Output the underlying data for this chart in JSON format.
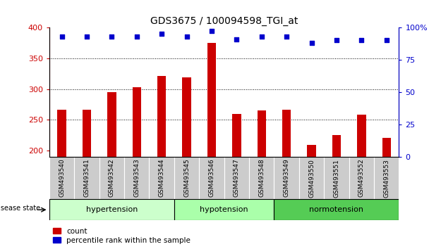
{
  "title": "GDS3675 / 100094598_TGI_at",
  "samples": [
    "GSM493540",
    "GSM493541",
    "GSM493542",
    "GSM493543",
    "GSM493544",
    "GSM493545",
    "GSM493546",
    "GSM493547",
    "GSM493548",
    "GSM493549",
    "GSM493550",
    "GSM493551",
    "GSM493552",
    "GSM493553"
  ],
  "counts": [
    267,
    267,
    295,
    303,
    321,
    319,
    375,
    260,
    265,
    267,
    209,
    225,
    258,
    221
  ],
  "percentiles": [
    93,
    93,
    93,
    93,
    95,
    93,
    97,
    91,
    93,
    93,
    88,
    90,
    90,
    90
  ],
  "ylim_left": [
    190,
    400
  ],
  "ylim_right": [
    0,
    100
  ],
  "yticks_left": [
    200,
    250,
    300,
    350,
    400
  ],
  "yticks_right": [
    0,
    25,
    50,
    75,
    100
  ],
  "groups": [
    {
      "label": "hypertension",
      "start": 0,
      "end": 5,
      "color": "#ccffcc"
    },
    {
      "label": "hypotension",
      "start": 5,
      "end": 9,
      "color": "#aaffaa"
    },
    {
      "label": "normotension",
      "start": 9,
      "end": 14,
      "color": "#55cc55"
    }
  ],
  "bar_color": "#cc0000",
  "dot_color": "#0000cc",
  "bg_color": "#ffffff",
  "tick_bg_color": "#cccccc",
  "legend_count_color": "#cc0000",
  "legend_pct_color": "#0000cc",
  "grid_yticks": [
    250,
    300,
    350
  ]
}
